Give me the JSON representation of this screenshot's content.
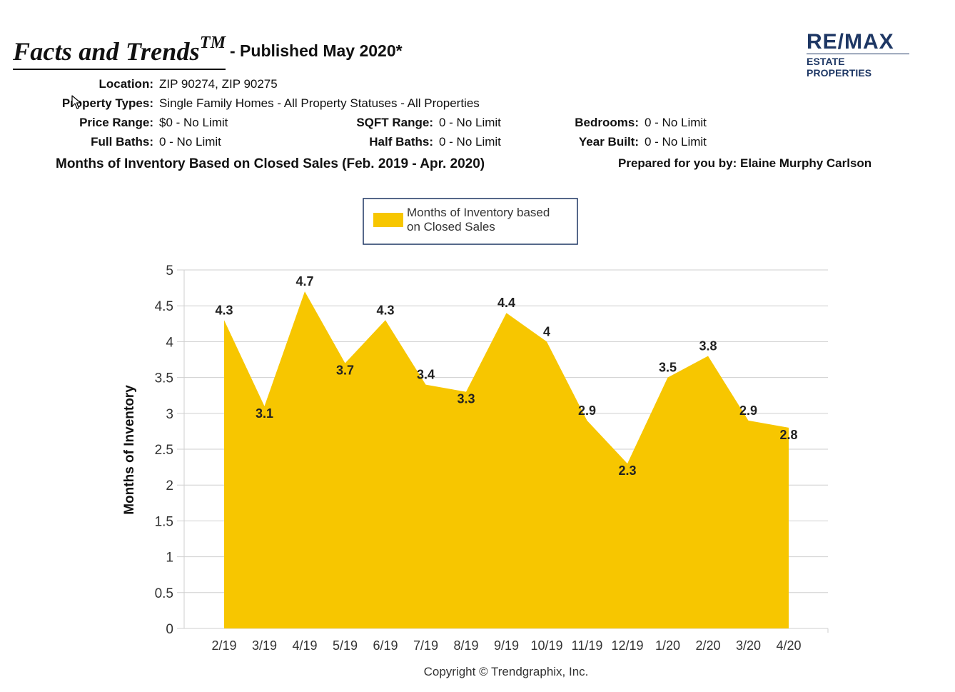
{
  "header": {
    "brand": "Facts and Trends",
    "brand_tm": "TM",
    "published": "- Published May 2020*",
    "logo_main": "RE/MAX",
    "logo_sub": "ESTATE PROPERTIES"
  },
  "criteria": {
    "location_label": "Location:",
    "location_value": "ZIP 90274, ZIP 90275",
    "property_types_label": "Property Types:",
    "property_types_value": "Single Family Homes - All Property Statuses - All Properties",
    "price_range_label": "Price Range:",
    "price_range_value": "$0 - No Limit",
    "sqft_range_label": "SQFT Range:",
    "sqft_range_value": "0 - No Limit",
    "bedrooms_label": "Bedrooms:",
    "bedrooms_value": "0 - No Limit",
    "full_baths_label": "Full Baths:",
    "full_baths_value": "0 - No Limit",
    "half_baths_label": "Half Baths:",
    "half_baths_value": "0 - No Limit",
    "year_built_label": "Year Built:",
    "year_built_value": "0 - No Limit"
  },
  "chart_heading": "Months of Inventory Based on Closed Sales (Feb. 2019 - Apr. 2020)",
  "prepared_by": "Prepared for you by: Elaine Murphy Carlson",
  "copyright": "Copyright © Trendgraphix, Inc.",
  "colors": {
    "area_fill": "#f7c600",
    "grid": "#cfcfcf",
    "logo": "#1e3764"
  },
  "chart_data": {
    "type": "area",
    "categories": [
      "2/19",
      "3/19",
      "4/19",
      "5/19",
      "6/19",
      "7/19",
      "8/19",
      "9/19",
      "10/19",
      "11/19",
      "12/19",
      "1/20",
      "2/20",
      "3/20",
      "4/20"
    ],
    "series": [
      {
        "name": "Months of Inventory based on Closed Sales",
        "legend_lines": [
          "Months of Inventory based",
          "on Closed Sales"
        ],
        "values": [
          4.3,
          3.1,
          4.7,
          3.7,
          4.3,
          3.4,
          3.3,
          4.4,
          4,
          2.9,
          2.3,
          3.5,
          3.8,
          2.9,
          2.8
        ],
        "labels": [
          "4.3",
          "3.1",
          "4.7",
          "3.7",
          "4.3",
          "3.4",
          "3.3",
          "4.4",
          "4",
          "2.9",
          "2.3",
          "3.5",
          "3.8",
          "2.9",
          "2.8"
        ]
      }
    ],
    "ylabel": "Months of Inventory",
    "xlabel": "",
    "ylim": [
      0,
      5
    ],
    "yticks": [
      "0",
      "0.5",
      "1",
      "1.5",
      "2",
      "2.5",
      "3",
      "3.5",
      "4",
      "4.5",
      "5"
    ],
    "grid": true,
    "legend_position": "top-center"
  }
}
